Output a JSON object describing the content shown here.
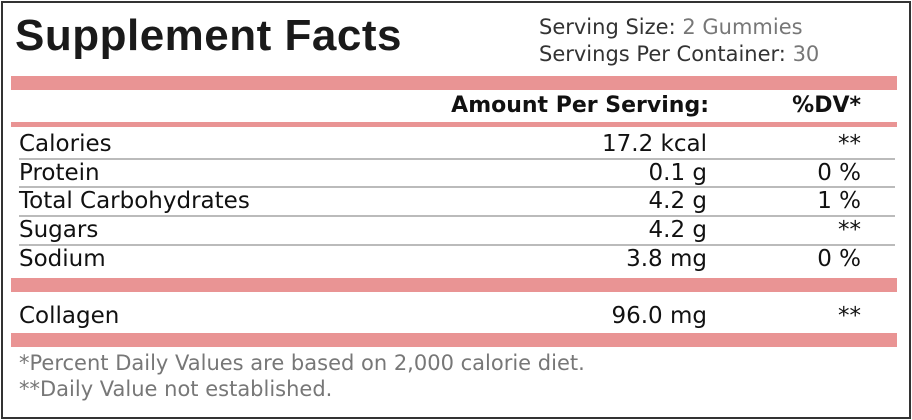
{
  "header": {
    "title": "Supplement Facts",
    "serving_size_label": "Serving Size:",
    "serving_size": "2 Gummies",
    "servings_label": "Servings Per Container:",
    "servings": "30"
  },
  "table": {
    "columns": [
      "Amount Per Serving:",
      "%DV*"
    ],
    "rows": [
      [
        "Calories",
        "17.2 kcal",
        "**"
      ],
      [
        "Protein",
        "0.1 g",
        "0 %"
      ],
      [
        "Total Carbohydrates",
        "4.2 g",
        "1 %"
      ],
      [
        "Sugars",
        "4.2 g",
        "**"
      ],
      [
        "Sodium",
        "3.8 mg",
        "0 %"
      ]
    ],
    "extra_rows": [
      [
        "Collagen",
        "96.0 mg",
        "**"
      ]
    ]
  },
  "footnotes": [
    "*Percent Daily Values are based on 2,000 calorie diet.",
    "**Daily Value not established."
  ]
}
